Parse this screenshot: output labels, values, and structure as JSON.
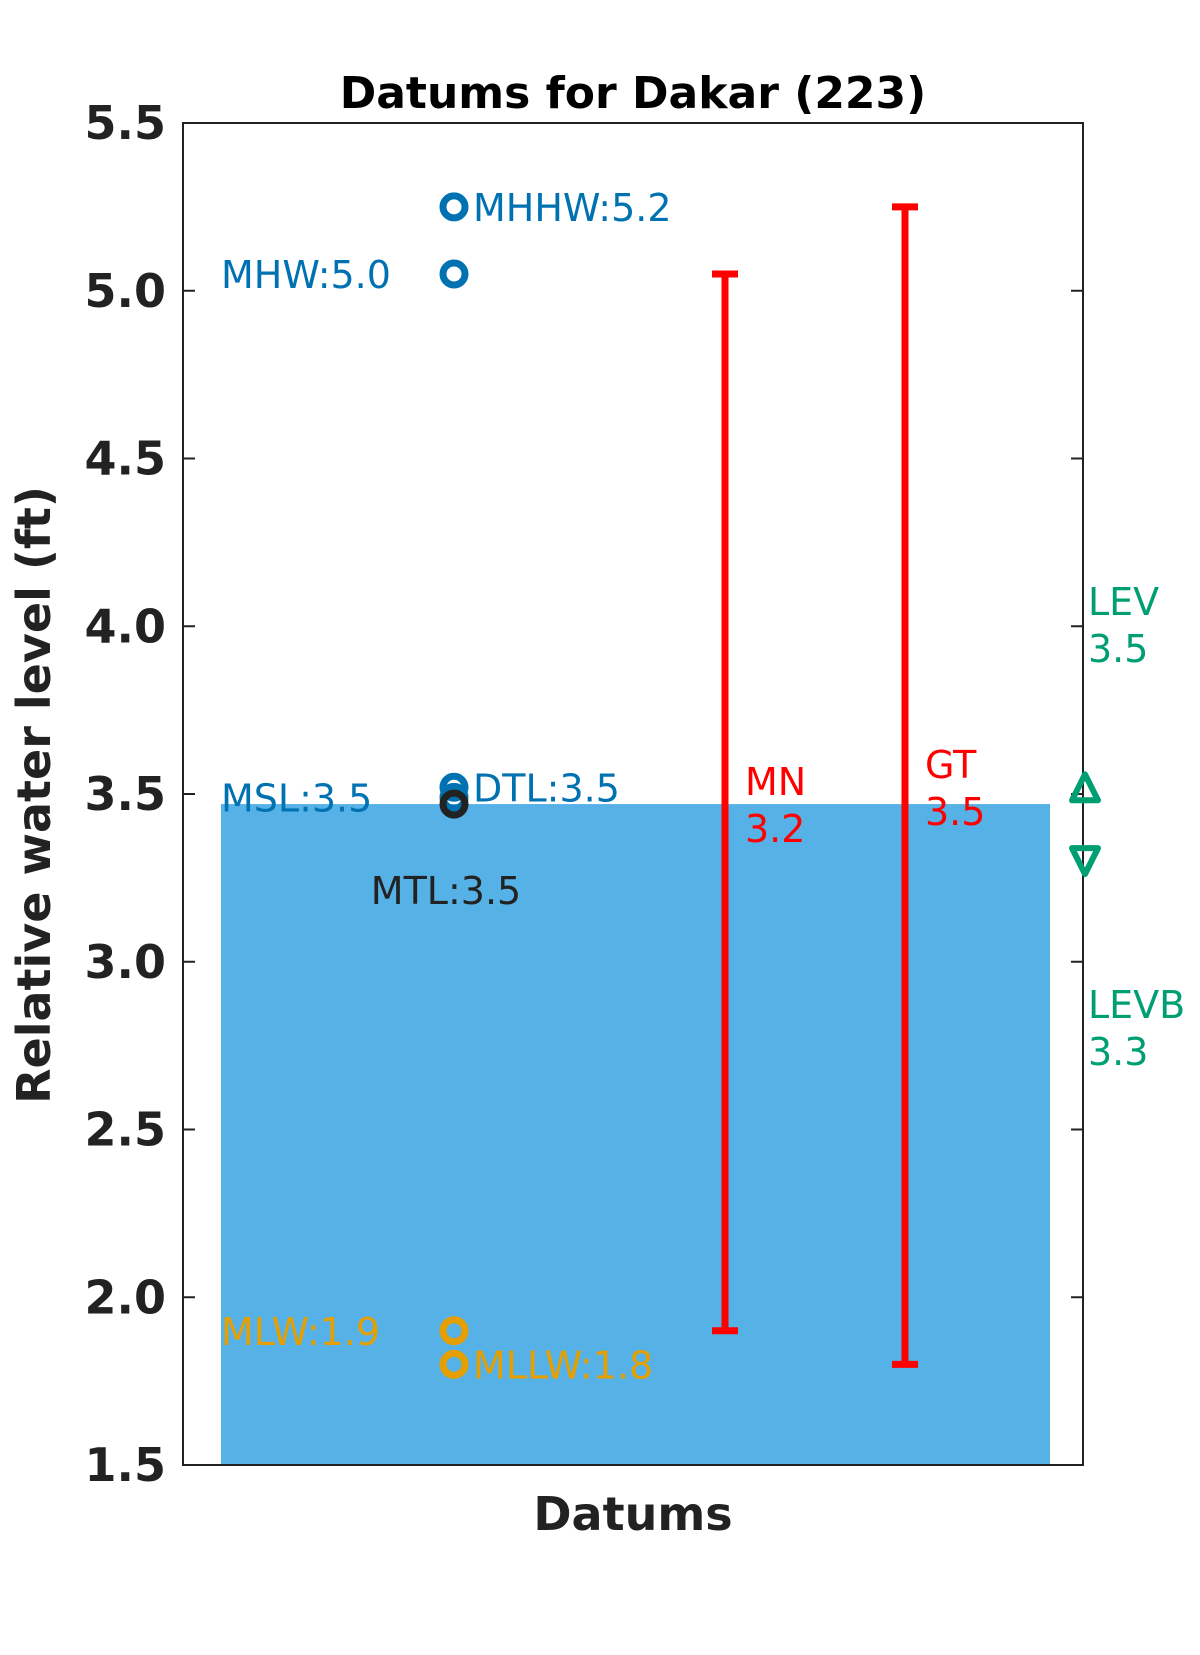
{
  "chart_data": {
    "type": "scatter",
    "title": "Datums for Dakar (223)",
    "xlabel": "Datums",
    "ylabel": "Relative water level (ft)",
    "ylim": [
      1.5,
      5.5
    ],
    "yticks": [
      "1.5",
      "2.0",
      "2.5",
      "3.0",
      "3.5",
      "4.0",
      "4.5",
      "5.0",
      "5.5"
    ],
    "grid": false,
    "background_fill": {
      "from": 1.5,
      "to": 3.47,
      "color": "#56B2E6"
    },
    "datums": [
      {
        "name": "MHHW",
        "text": "MHHW:5.2",
        "value": 5.25,
        "color": "#0072B2",
        "label_side": "right"
      },
      {
        "name": "MHW",
        "text": "MHW:5.0",
        "value": 5.05,
        "color": "#0072B2",
        "label_side": "left"
      },
      {
        "name": "DTL",
        "text": "DTL:3.5",
        "value": 3.52,
        "color": "#0072B2",
        "label_side": "right"
      },
      {
        "name": "MSL",
        "text": "MSL:3.5",
        "value": 3.49,
        "color": "#0072B2",
        "label_side": "left"
      },
      {
        "name": "MTL",
        "text": "MTL:3.5",
        "value": 3.47,
        "color": "#222222",
        "label_side": "below"
      },
      {
        "name": "MLW",
        "text": "MLW:1.9",
        "value": 1.9,
        "color": "#E69F00",
        "label_side": "left"
      },
      {
        "name": "MLLW",
        "text": "MLLW:1.8",
        "value": 1.8,
        "color": "#E69F00",
        "label_side": "right"
      }
    ],
    "ranges": [
      {
        "name": "MN",
        "label": "MN",
        "value_text": "3.2",
        "low": 1.9,
        "high": 5.05,
        "color": "#FF0000"
      },
      {
        "name": "GT",
        "label": "GT",
        "value_text": "3.5",
        "low": 1.8,
        "high": 5.25,
        "color": "#FF0000"
      }
    ],
    "extremes": [
      {
        "name": "LEV",
        "label": "LEV",
        "value_text": "3.5",
        "value": 3.52,
        "marker": "triangle-up",
        "color": "#009E73"
      },
      {
        "name": "LEVB",
        "label": "LEVB",
        "value_text": "3.3",
        "value": 3.3,
        "marker": "triangle-down",
        "color": "#009E73"
      }
    ]
  }
}
